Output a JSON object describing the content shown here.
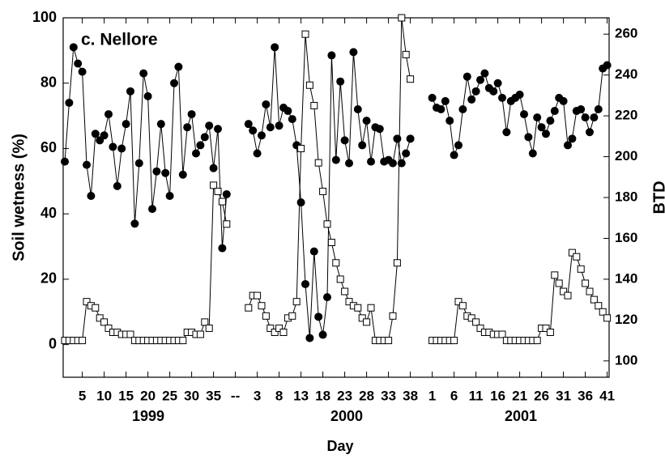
{
  "chart_data": {
    "type": "line",
    "annotation": "c. Nellore",
    "y_label": "Soil wetness (%)",
    "y2_label": "BTD",
    "x_label": "Day",
    "year_labels": [
      "1999",
      "2000",
      "2001"
    ],
    "categories": [
      null,
      null,
      null,
      null,
      "5",
      null,
      null,
      null,
      null,
      "10",
      null,
      null,
      null,
      null,
      "15",
      null,
      null,
      null,
      null,
      "20",
      null,
      null,
      null,
      null,
      "25",
      null,
      null,
      null,
      null,
      "30",
      null,
      null,
      null,
      null,
      "35",
      null,
      null,
      null,
      null,
      "--",
      null,
      null,
      null,
      null,
      "3",
      null,
      null,
      null,
      null,
      "8",
      null,
      null,
      null,
      null,
      "13",
      null,
      null,
      null,
      null,
      "18",
      null,
      null,
      null,
      null,
      "23",
      null,
      null,
      null,
      null,
      "28",
      null,
      null,
      null,
      null,
      "33",
      null,
      null,
      null,
      null,
      "38",
      null,
      null,
      null,
      null,
      "1",
      null,
      null,
      null,
      null,
      "6",
      null,
      null,
      null,
      null,
      "11",
      null,
      null,
      null,
      null,
      "16",
      null,
      null,
      null,
      null,
      "21",
      null,
      null,
      null,
      null,
      "26",
      null,
      null,
      null,
      null,
      "31",
      null,
      null,
      null,
      null,
      "36",
      null,
      null,
      null,
      null,
      "41"
    ],
    "ylim": [
      -10,
      100
    ],
    "yticks": [
      0,
      20,
      40,
      60,
      80,
      100
    ],
    "y2lim": [
      92,
      268
    ],
    "y2ticks": [
      100,
      120,
      140,
      160,
      180,
      200,
      220,
      240,
      260
    ],
    "series": [
      {
        "marker": "circle",
        "color": "#000000",
        "values": [
          56,
          74,
          91,
          86,
          83.5,
          55,
          45.5,
          64.5,
          62.5,
          64,
          70.5,
          60.5,
          48.5,
          60,
          67.5,
          77.5,
          37,
          55.5,
          83,
          76,
          41.5,
          53,
          67.5,
          52.5,
          45.5,
          80,
          85,
          52,
          66.5,
          70.5,
          58.5,
          61,
          63.5,
          67,
          54,
          66,
          29.5,
          46,
          null,
          null,
          null,
          null,
          67.5,
          65.5,
          58.5,
          64,
          73.5,
          66.5,
          91,
          67,
          72.5,
          71.5,
          69,
          61,
          43.5,
          18.5,
          2,
          28.5,
          8.5,
          3,
          14.5,
          88.5,
          56.5,
          80.5,
          62.5,
          55.5,
          89.5,
          72,
          61,
          68.5,
          56,
          66.5,
          66,
          56,
          56.5,
          55.5,
          63,
          55.5,
          58.5,
          63,
          null,
          null,
          null,
          null,
          75.5,
          72.5,
          72,
          74.5,
          68.5,
          58,
          61,
          72,
          82,
          75,
          77.5,
          81,
          83,
          78.5,
          77.5,
          80,
          75.5,
          65,
          74.5,
          75.5,
          76.5,
          70.5,
          63.5,
          58.5,
          69.5,
          66.5,
          64.5,
          68.5,
          71.5,
          75.5,
          74.5,
          61,
          63,
          71.5,
          72,
          69.5,
          65,
          69.5,
          72,
          84.5,
          85.5
        ]
      },
      {
        "marker": "square",
        "color": "#000000",
        "axis": "y2",
        "values": [
          110,
          110,
          110,
          110,
          110,
          129,
          127,
          126,
          121,
          119,
          116,
          114,
          114,
          113,
          113,
          113,
          110,
          110,
          110,
          110,
          110,
          110,
          110,
          110,
          110,
          110,
          110,
          110,
          114,
          114,
          113,
          113,
          119,
          116,
          186,
          183,
          178,
          167,
          null,
          null,
          null,
          null,
          126,
          132,
          132,
          127,
          122,
          116,
          114,
          116,
          114,
          121,
          122,
          129,
          204,
          260,
          235,
          225,
          197,
          183,
          167,
          158,
          148,
          140,
          134,
          129,
          127,
          126,
          121,
          119,
          126,
          110,
          110,
          110,
          110,
          122,
          148,
          268,
          250,
          238,
          null,
          null,
          null,
          null,
          110,
          110,
          110,
          110,
          110,
          110,
          129,
          127,
          122,
          121,
          119,
          116,
          114,
          114,
          113,
          113,
          113,
          110,
          110,
          110,
          110,
          110,
          110,
          110,
          110,
          116,
          116,
          114,
          142,
          138,
          134,
          132,
          153,
          151,
          145,
          138,
          134,
          130,
          127,
          124,
          121
        ]
      }
    ]
  }
}
